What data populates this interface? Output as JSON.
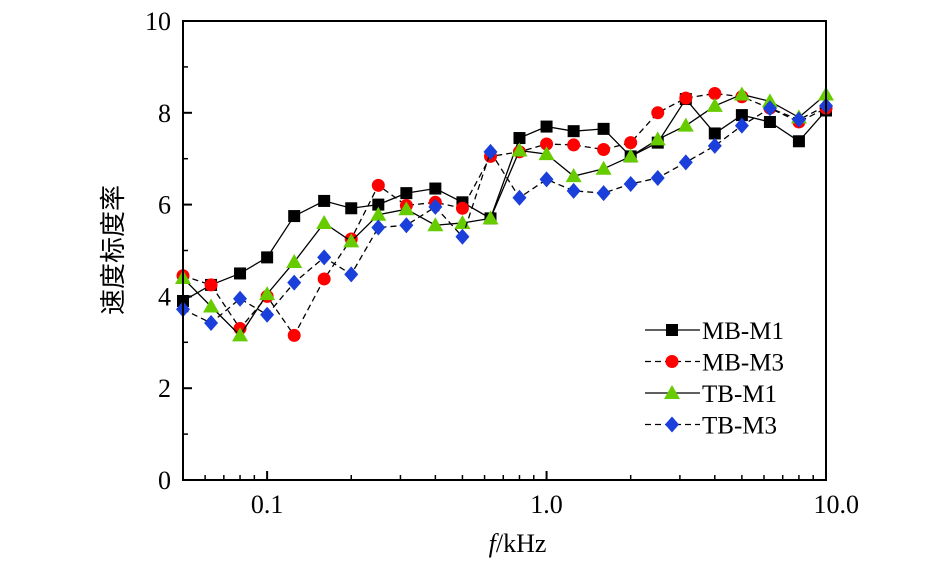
{
  "chart_data": {
    "type": "line",
    "xscale": "log",
    "xlim": [
      0.05,
      10.0
    ],
    "ylim": [
      0,
      10
    ],
    "xlabel_italic": "f",
    "xlabel_rest": "/kHz",
    "ylabel": "速度标度率",
    "x_ticks": [
      {
        "value": 0.1,
        "label": "0.1"
      },
      {
        "value": 1.0,
        "label": "1.0"
      },
      {
        "value": 10.0,
        "label": "10.0"
      }
    ],
    "y_ticks": [
      {
        "value": 0,
        "label": "0"
      },
      {
        "value": 2,
        "label": "2"
      },
      {
        "value": 4,
        "label": "4"
      },
      {
        "value": 6,
        "label": "6"
      },
      {
        "value": 8,
        "label": "8"
      },
      {
        "value": 10,
        "label": "10"
      }
    ],
    "legend_position": "bottom-right",
    "x": [
      0.05,
      0.063,
      0.08,
      0.1,
      0.125,
      0.16,
      0.2,
      0.25,
      0.315,
      0.4,
      0.5,
      0.63,
      0.8,
      1.0,
      1.25,
      1.6,
      2.0,
      2.5,
      3.15,
      4.0,
      5.0,
      6.3,
      8.0,
      10.0
    ],
    "series": [
      {
        "name": "MB-M1",
        "marker": "square",
        "color": "#000000",
        "dash": "solid",
        "values": [
          3.9,
          4.25,
          4.5,
          4.85,
          5.75,
          6.08,
          5.92,
          6.0,
          6.25,
          6.35,
          6.05,
          5.7,
          7.45,
          7.7,
          7.6,
          7.65,
          7.05,
          7.35,
          8.3,
          7.55,
          7.95,
          7.8,
          7.38,
          8.05
        ]
      },
      {
        "name": "MB-M3",
        "marker": "circle",
        "color": "#ff0000",
        "dash": "dashed",
        "values": [
          4.45,
          4.25,
          3.3,
          4.0,
          3.15,
          4.38,
          5.25,
          6.42,
          5.98,
          6.05,
          5.92,
          7.05,
          7.15,
          7.32,
          7.3,
          7.2,
          7.35,
          8.0,
          8.32,
          8.42,
          8.35,
          8.1,
          7.8,
          8.1
        ]
      },
      {
        "name": "TB-M1",
        "marker": "triangle",
        "color": "#66cc00",
        "dash": "solid",
        "values": [
          4.4,
          3.78,
          3.15,
          4.05,
          4.75,
          5.6,
          5.2,
          5.78,
          5.9,
          5.55,
          5.6,
          5.7,
          7.18,
          7.1,
          6.62,
          6.78,
          7.05,
          7.42,
          7.72,
          8.15,
          8.4,
          8.25,
          7.9,
          8.4
        ]
      },
      {
        "name": "TB-M3",
        "marker": "diamond",
        "color": "#1a3fdb",
        "dash": "dashed",
        "values": [
          3.72,
          3.42,
          3.95,
          3.6,
          4.3,
          4.85,
          4.48,
          5.5,
          5.55,
          5.95,
          5.3,
          7.15,
          6.15,
          6.55,
          6.3,
          6.25,
          6.45,
          6.58,
          6.92,
          7.28,
          7.72,
          8.1,
          7.85,
          8.15
        ]
      }
    ]
  }
}
